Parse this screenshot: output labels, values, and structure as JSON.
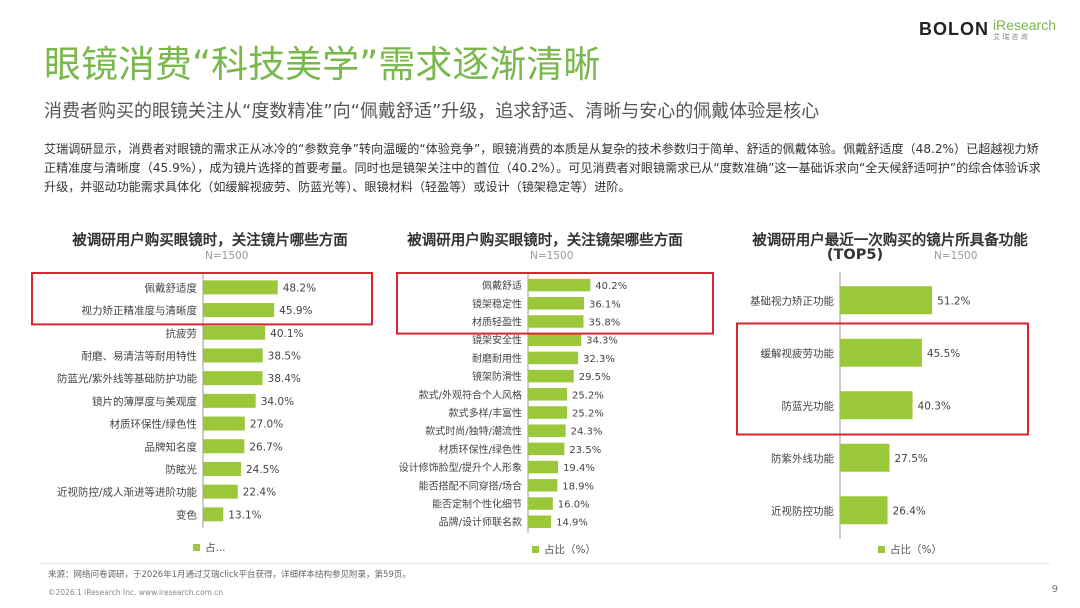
{
  "brand": {
    "name": "BOLON",
    "partner": "iResearch",
    "partner_cn": "艾 瑞 咨 询"
  },
  "title": "眼镜消费“科技美学”需求逐渐清晰",
  "subtitle": "消费者购买的眼镜关注从“度数精准”向“佩戴舒适”升级，追求舒适、清晰与安心的佩戴体验是核心",
  "intro": "艾瑞调研显示，消费者对眼镜的需求正从冰冷的“参数竞争”转向温暖的“体验竞争”，眼镜消费的本质是从复杂的技术参数归于简单、舒适的佩戴体验。佩戴舒适度（48.2%）已超越视力矫正精准度与清晰度（45.9%），成为镜片选择的首要考量。同时也是镜架关注中的首位（40.2%）。可见消费者对眼镜需求已从“度数准确”这一基础诉求向“全天候舒适呵护”的综合体验诉求升级，并驱动功能需求具体化（如缓解视疲劳、防蓝光等）、眼镜材料（轻盈等）或设计（镜架稳定等）进阶。",
  "colors": {
    "bar": "#9bc73b",
    "highlight": "#d8262e",
    "title": "#79b84a"
  },
  "chart_data": [
    {
      "type": "bar",
      "orientation": "horizontal",
      "title": "被调研用户购买眼镜时，关注镜片哪些方面",
      "sample": "N=1500",
      "legend_label": "占...",
      "value_suffix": "%",
      "categories": [
        "佩戴舒适度",
        "视力矫正精准度与清晰度",
        "抗疲劳",
        "耐磨、易清洁等耐用特性",
        "防蓝光/紫外线等基础防护功能",
        "镜片的薄厚度与美观度",
        "材质环保性/绿色性",
        "品牌知名度",
        "防眩光",
        "近视防控/成人渐进等进阶功能",
        "变色"
      ],
      "values": [
        48.2,
        45.9,
        40.1,
        38.5,
        38.4,
        34.0,
        27.0,
        26.7,
        24.5,
        22.4,
        13.1
      ],
      "highlight_indices": [
        0,
        1
      ]
    },
    {
      "type": "bar",
      "orientation": "horizontal",
      "title": "被调研用户购买眼镜时，关注镜架哪些方面",
      "sample": "N=1500",
      "legend_label": "占比（%）",
      "value_suffix": "%",
      "categories": [
        "佩戴舒适",
        "镜架稳定性",
        "材质轻盈性",
        "镜架安全性",
        "耐磨耐用性",
        "镜架防滑性",
        "款式/外观符合个人风格",
        "款式多样/丰富性",
        "款式时尚/独特/潮流性",
        "材质环保性/绿色性",
        "设计修饰脸型/提升个人形象",
        "能否搭配不同穿搭/场合",
        "能否定制个性化细节",
        "品牌/设计师联名款"
      ],
      "values": [
        40.2,
        36.1,
        35.8,
        34.3,
        32.3,
        29.5,
        25.2,
        25.2,
        24.3,
        23.5,
        19.4,
        18.9,
        16.0,
        14.9
      ],
      "highlight_indices": [
        0,
        1,
        2
      ]
    },
    {
      "type": "bar",
      "orientation": "horizontal",
      "title": "被调研用户最近一次购买的镜片所具备功能",
      "title_line2": "(TOP5)",
      "sample": "N=1500",
      "legend_label": "占比（%）",
      "value_suffix": "%",
      "categories": [
        "基础视力矫正功能",
        "缓解视疲劳功能",
        "防蓝光功能",
        "防紫外线功能",
        "近视防控功能"
      ],
      "values": [
        51.2,
        45.5,
        40.3,
        27.5,
        26.4
      ],
      "highlight_indices": [
        1,
        2
      ]
    }
  ],
  "footer": {
    "source": "来源：网络问卷调研，于2026年1月通过艾瑞click平台获得，详细样本结构参见附录，第59页。",
    "copyright": "©2026.1 iResearch Inc.                    www.iresearch.com.cn",
    "page_number": "9"
  }
}
